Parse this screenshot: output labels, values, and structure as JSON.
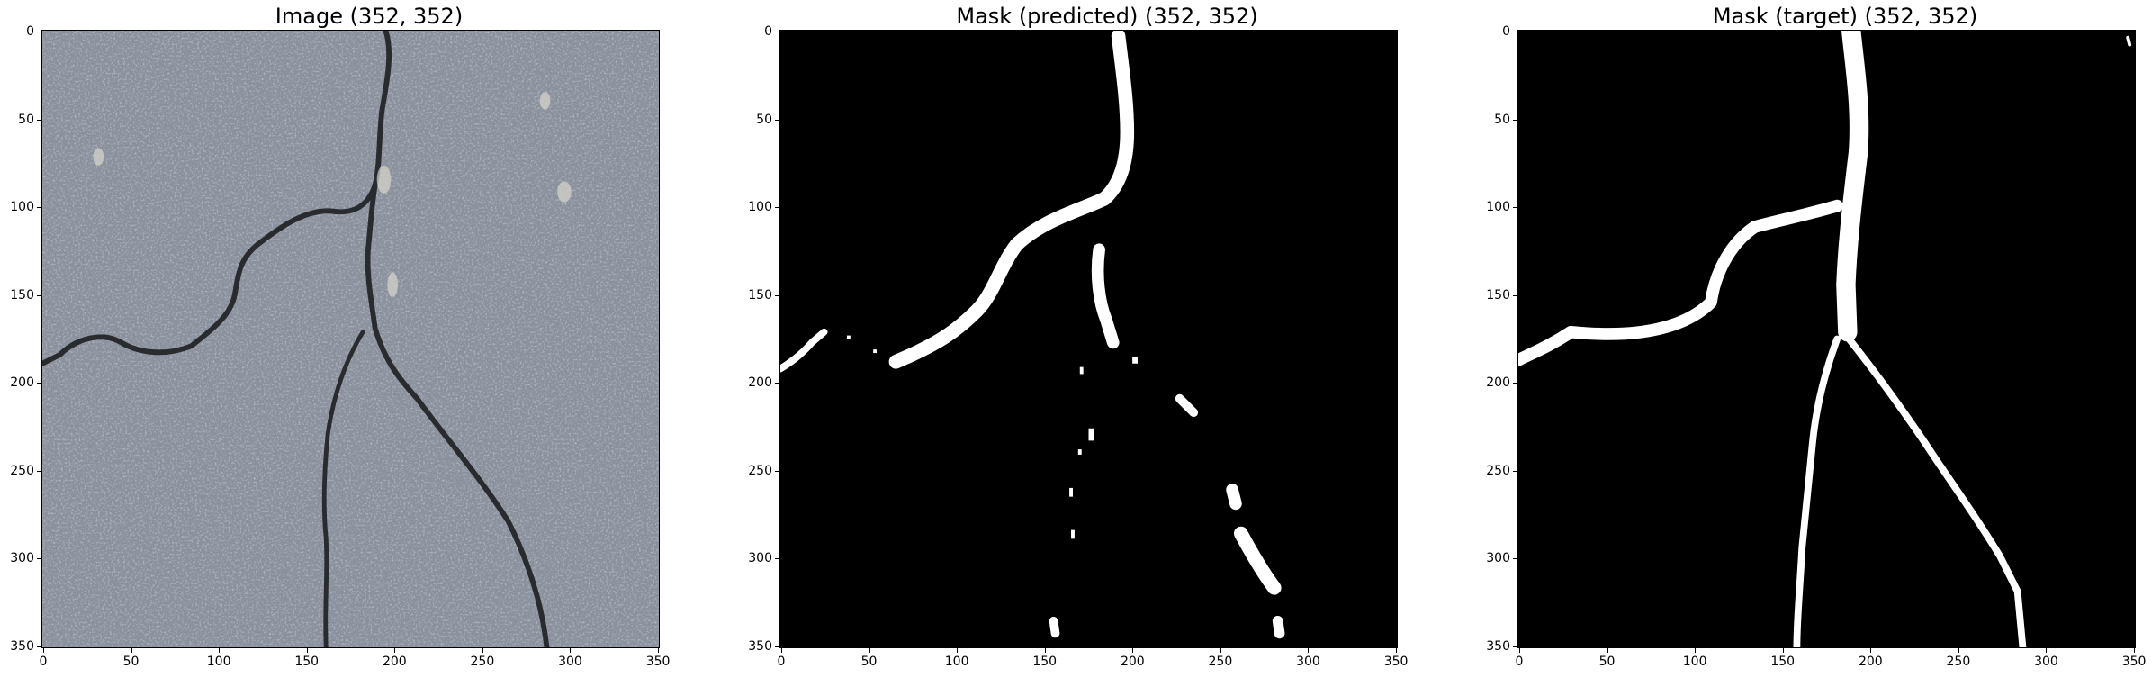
{
  "figure": {
    "panels": [
      {
        "id": "image",
        "title": "Image (352, 352)"
      },
      {
        "id": "predicted",
        "title": "Mask (predicted) (352, 352)"
      },
      {
        "id": "target",
        "title": "Mask (target) (352, 352)"
      }
    ],
    "x_ticks": [
      "0",
      "50",
      "100",
      "150",
      "200",
      "250",
      "300",
      "350"
    ],
    "y_ticks": [
      "0",
      "50",
      "100",
      "150",
      "200",
      "250",
      "300",
      "350"
    ],
    "mask_colors": {
      "background": "#000000",
      "foreground": "#ffffff"
    },
    "image_colors": {
      "surface": "#8a919d",
      "crack": "#2a2b2e"
    }
  }
}
